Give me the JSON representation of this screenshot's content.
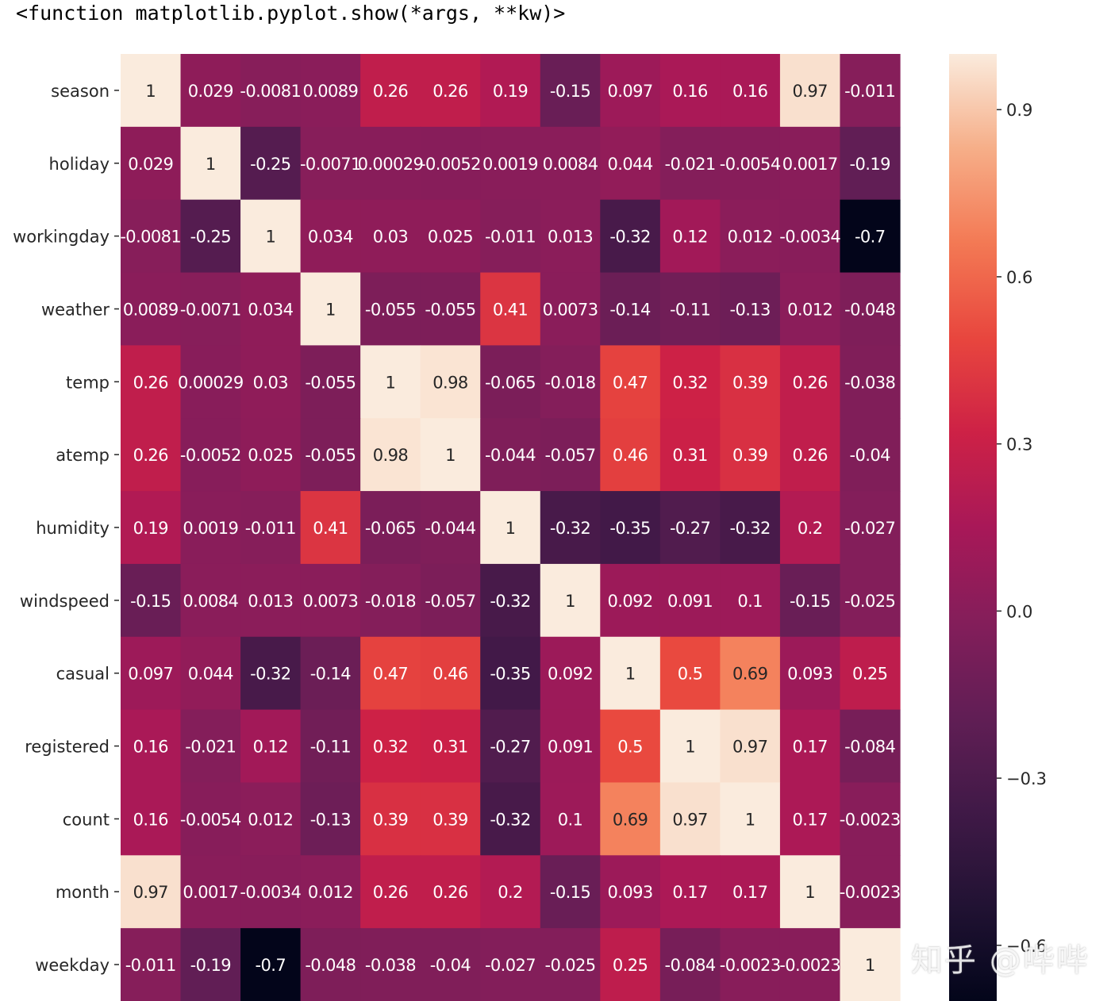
{
  "output_text": "<function matplotlib.pyplot.show(*args, **kw)>",
  "watermark": "知乎 @哔哔",
  "chart_data": {
    "type": "heatmap",
    "labels": [
      "season",
      "holiday",
      "workingday",
      "weather",
      "temp",
      "atemp",
      "humidity",
      "windspeed",
      "casual",
      "registered",
      "count",
      "month",
      "weekday"
    ],
    "values": [
      [
        1,
        0.029,
        -0.0081,
        0.0089,
        0.26,
        0.26,
        0.19,
        -0.15,
        0.097,
        0.16,
        0.16,
        0.97,
        -0.011
      ],
      [
        0.029,
        1,
        -0.25,
        -0.0071,
        0.00029,
        -0.0052,
        0.0019,
        0.0084,
        0.044,
        -0.021,
        -0.0054,
        0.0017,
        -0.19
      ],
      [
        -0.0081,
        -0.25,
        1,
        0.034,
        0.03,
        0.025,
        -0.011,
        0.013,
        -0.32,
        0.12,
        0.012,
        -0.0034,
        -0.7
      ],
      [
        0.0089,
        -0.0071,
        0.034,
        1,
        -0.055,
        -0.055,
        0.41,
        0.0073,
        -0.14,
        -0.11,
        -0.13,
        0.012,
        -0.048
      ],
      [
        0.26,
        0.00029,
        0.03,
        -0.055,
        1,
        0.98,
        -0.065,
        -0.018,
        0.47,
        0.32,
        0.39,
        0.26,
        -0.038
      ],
      [
        0.26,
        -0.0052,
        0.025,
        -0.055,
        0.98,
        1,
        -0.044,
        -0.057,
        0.46,
        0.31,
        0.39,
        0.26,
        -0.04
      ],
      [
        0.19,
        0.0019,
        -0.011,
        0.41,
        -0.065,
        -0.044,
        1,
        -0.32,
        -0.35,
        -0.27,
        -0.32,
        0.2,
        -0.027
      ],
      [
        -0.15,
        0.0084,
        0.013,
        0.0073,
        -0.018,
        -0.057,
        -0.32,
        1,
        0.092,
        0.091,
        0.1,
        -0.15,
        -0.025
      ],
      [
        0.097,
        0.044,
        -0.32,
        -0.14,
        0.47,
        0.46,
        -0.35,
        0.092,
        1,
        0.5,
        0.69,
        0.093,
        0.25
      ],
      [
        0.16,
        -0.021,
        0.12,
        -0.11,
        0.32,
        0.31,
        -0.27,
        0.091,
        0.5,
        1,
        0.97,
        0.17,
        -0.084
      ],
      [
        0.16,
        -0.0054,
        0.012,
        -0.13,
        0.39,
        0.39,
        -0.32,
        0.1,
        0.69,
        0.97,
        1,
        0.17,
        -0.0023
      ],
      [
        0.97,
        0.0017,
        -0.0034,
        0.012,
        0.26,
        0.26,
        0.2,
        -0.15,
        0.093,
        0.17,
        0.17,
        1,
        -0.0023
      ],
      [
        -0.011,
        -0.19,
        -0.7,
        -0.048,
        -0.038,
        -0.04,
        -0.027,
        -0.025,
        0.25,
        -0.084,
        -0.0023,
        -0.0023,
        1
      ]
    ],
    "annotations": [
      [
        "1",
        "0.029",
        "-0.0081",
        "0.0089",
        "0.26",
        "0.26",
        "0.19",
        "-0.15",
        "0.097",
        "0.16",
        "0.16",
        "0.97",
        "-0.011"
      ],
      [
        "0.029",
        "1",
        "-0.25",
        "-0.0071",
        "0.00029",
        "-0.0052",
        "0.0019",
        "0.0084",
        "0.044",
        "-0.021",
        "-0.0054",
        "0.0017",
        "-0.19"
      ],
      [
        "-0.0081",
        "-0.25",
        "1",
        "0.034",
        "0.03",
        "0.025",
        "-0.011",
        "0.013",
        "-0.32",
        "0.12",
        "0.012",
        "-0.0034",
        "-0.7"
      ],
      [
        "0.0089",
        "-0.0071",
        "0.034",
        "1",
        "-0.055",
        "-0.055",
        "0.41",
        "0.0073",
        "-0.14",
        "-0.11",
        "-0.13",
        "0.012",
        "-0.048"
      ],
      [
        "0.26",
        "0.00029",
        "0.03",
        "-0.055",
        "1",
        "0.98",
        "-0.065",
        "-0.018",
        "0.47",
        "0.32",
        "0.39",
        "0.26",
        "-0.038"
      ],
      [
        "0.26",
        "-0.0052",
        "0.025",
        "-0.055",
        "0.98",
        "1",
        "-0.044",
        "-0.057",
        "0.46",
        "0.31",
        "0.39",
        "0.26",
        "-0.04"
      ],
      [
        "0.19",
        "0.0019",
        "-0.011",
        "0.41",
        "-0.065",
        "-0.044",
        "1",
        "-0.32",
        "-0.35",
        "-0.27",
        "-0.32",
        "0.2",
        "-0.027"
      ],
      [
        "-0.15",
        "0.0084",
        "0.013",
        "0.0073",
        "-0.018",
        "-0.057",
        "-0.32",
        "1",
        "0.092",
        "0.091",
        "0.1",
        "-0.15",
        "-0.025"
      ],
      [
        "0.097",
        "0.044",
        "-0.32",
        "-0.14",
        "0.47",
        "0.46",
        "-0.35",
        "0.092",
        "1",
        "0.5",
        "0.69",
        "0.093",
        "0.25"
      ],
      [
        "0.16",
        "-0.021",
        "0.12",
        "-0.11",
        "0.32",
        "0.31",
        "-0.27",
        "0.091",
        "0.5",
        "1",
        "0.97",
        "0.17",
        "-0.084"
      ],
      [
        "0.16",
        "-0.0054",
        "0.012",
        "-0.13",
        "0.39",
        "0.39",
        "-0.32",
        "0.1",
        "0.69",
        "0.97",
        "1",
        "0.17",
        "-0.0023"
      ],
      [
        "0.97",
        "0.0017",
        "-0.0034",
        "0.012",
        "0.26",
        "0.26",
        "0.2",
        "-0.15",
        "0.093",
        "0.17",
        "0.17",
        "1",
        "-0.0023"
      ],
      [
        "-0.011",
        "-0.19",
        "-0.7",
        "-0.048",
        "-0.038",
        "-0.04",
        "-0.027",
        "-0.025",
        "0.25",
        "-0.084",
        "-0.0023",
        "-0.0023",
        "1"
      ]
    ],
    "colorbar": {
      "vmin": -0.7,
      "vmax": 1.0,
      "ticks": [
        0.9,
        0.6,
        0.3,
        0.0,
        -0.3,
        -0.6
      ],
      "tick_labels": [
        "0.9",
        "0.6",
        "0.3",
        "0.0",
        "−0.3",
        "−0.6"
      ],
      "colormap": "rocket"
    },
    "title": "",
    "xlabel": "",
    "ylabel": ""
  }
}
